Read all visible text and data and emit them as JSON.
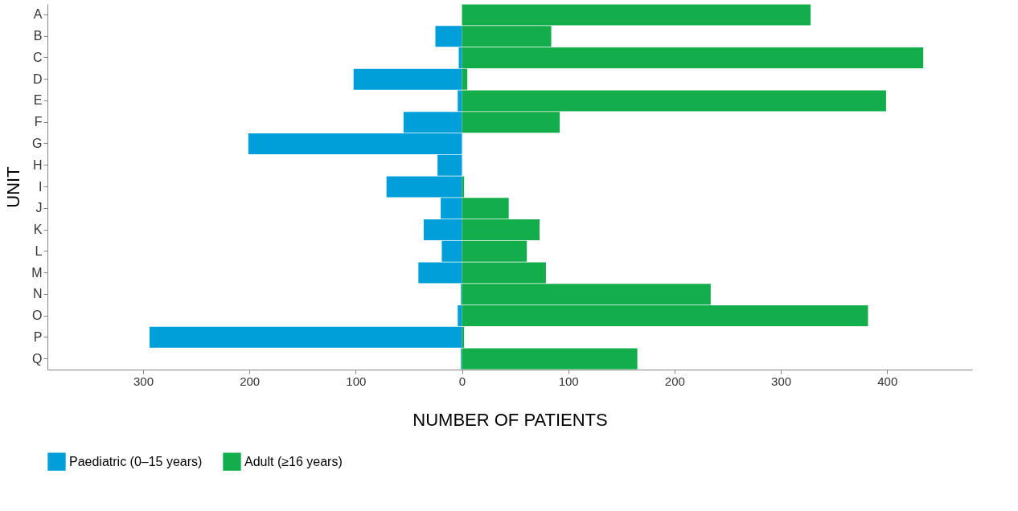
{
  "chart_data": {
    "type": "bar",
    "orientation": "horizontal",
    "stacked": true,
    "xlabel": "NUMBER OF PATIENTS",
    "ylabel": "UNIT",
    "categories": [
      "A",
      "B",
      "C",
      "D",
      "E",
      "F",
      "G",
      "H",
      "I",
      "J",
      "K",
      "L",
      "M",
      "N",
      "O",
      "P",
      "Q"
    ],
    "series": [
      {
        "name": "Paediatric (0–15 years)",
        "color": "#009fda",
        "values": [
          0,
          -25,
          -3,
          -102,
          -4,
          -55,
          -201,
          -23,
          -71,
          -20,
          -36,
          -19,
          -41,
          -1,
          -4,
          -294,
          -1
        ]
      },
      {
        "name": "Adult (≥16 years)",
        "color": "#14ad4b",
        "values": [
          328,
          84,
          434,
          5,
          399,
          92,
          0,
          0,
          2,
          44,
          73,
          61,
          79,
          234,
          382,
          2,
          165
        ]
      }
    ],
    "xlim": [
      -390,
      480
    ],
    "xticks": [
      {
        "value": -300,
        "label": "300"
      },
      {
        "value": -200,
        "label": "200"
      },
      {
        "value": -100,
        "label": "100"
      },
      0,
      100,
      200,
      300,
      400
    ],
    "grid": false,
    "legend": "bottom"
  }
}
